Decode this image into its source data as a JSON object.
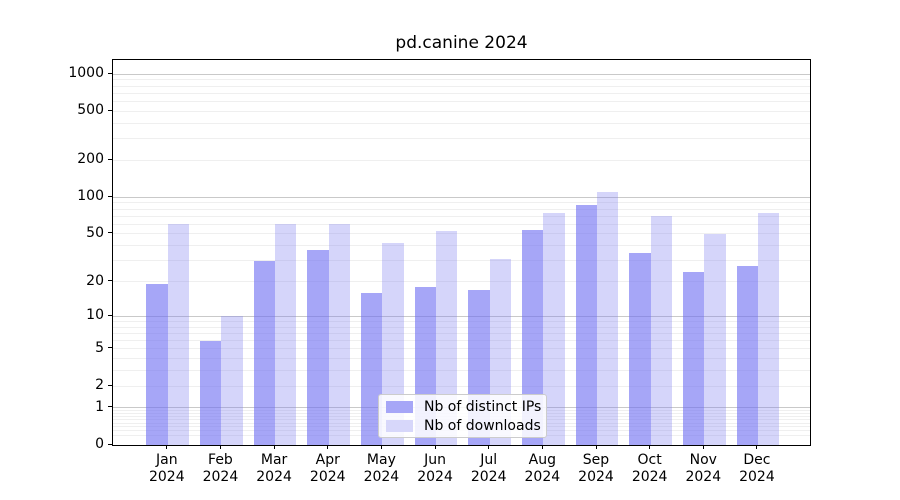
{
  "title": "pd.canine 2024",
  "chart_data": {
    "type": "bar",
    "title": "pd.canine 2024",
    "categories": [
      "Jan",
      "Feb",
      "Mar",
      "Apr",
      "May",
      "Jun",
      "Jul",
      "Aug",
      "Sep",
      "Oct",
      "Nov",
      "Dec"
    ],
    "category_year": "2024",
    "series": [
      {
        "name": "Nb of distinct IPs",
        "fill": "rgba(112,112,242,0.62)",
        "swatch": "#a6a6f7",
        "values": [
          19,
          6,
          30,
          37,
          16,
          18,
          17,
          54,
          86,
          35,
          24,
          27
        ]
      },
      {
        "name": "Nb of downloads",
        "fill": "rgba(125,125,238,0.32)",
        "swatch": "#d7d7fa",
        "values": [
          60,
          10,
          60,
          60,
          42,
          53,
          31,
          74,
          110,
          70,
          50,
          75
        ]
      }
    ],
    "xlabel": "",
    "ylabel": "",
    "yscale": "log1p",
    "ylim": [
      0,
      1300
    ],
    "yticks": [
      {
        "v": 0,
        "label": "0"
      },
      {
        "v": 1,
        "label": "1"
      },
      {
        "v": 2,
        "label": "2"
      },
      {
        "v": 5,
        "label": "5"
      },
      {
        "v": 10,
        "label": "10"
      },
      {
        "v": 20,
        "label": "20"
      },
      {
        "v": 50,
        "label": "50"
      },
      {
        "v": 100,
        "label": "100"
      },
      {
        "v": 200,
        "label": "200"
      },
      {
        "v": 500,
        "label": "500"
      },
      {
        "v": 1000,
        "label": "1000"
      }
    ],
    "major_gridlines": [
      1,
      10,
      100,
      1000
    ],
    "minor_gridlines": [
      0.2,
      0.3,
      0.4,
      0.5,
      0.6,
      0.7,
      0.8,
      0.9,
      2,
      3,
      4,
      5,
      6,
      7,
      8,
      9,
      20,
      30,
      40,
      50,
      60,
      70,
      80,
      90,
      200,
      300,
      400,
      500,
      600,
      700,
      800,
      900
    ],
    "grid": true,
    "grid_color_major": "#c9c9c9",
    "grid_color_minor": "#efefef",
    "legend_position": "lower center"
  }
}
